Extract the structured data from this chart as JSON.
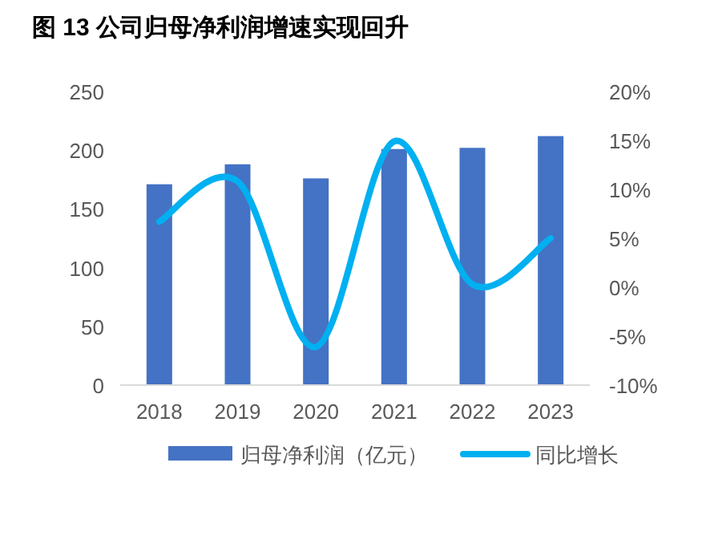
{
  "chart_data": {
    "type": "bar",
    "title": "图 13 公司归母净利润增速实现回升",
    "categories": [
      "2018",
      "2019",
      "2020",
      "2021",
      "2022",
      "2023"
    ],
    "series": [
      {
        "name": "归母净利润（亿元）",
        "color": "#4472c4",
        "values": [
          171,
          188,
          176,
          201,
          202,
          212
        ]
      },
      {
        "name": "同比增长",
        "type": "line",
        "axis": "y2",
        "color": "#00b0f0",
        "values": [
          6.7,
          10.8,
          -6.1,
          14.9,
          0.3,
          5.0
        ]
      }
    ],
    "ylim": [
      0,
      250
    ],
    "yticks": [
      0,
      50,
      100,
      150,
      200,
      250
    ],
    "y2lim": [
      -10,
      20
    ],
    "y2ticks": [
      {
        "value": -10,
        "label": "-10%"
      },
      {
        "value": -5,
        "label": "-5%"
      },
      {
        "value": 0,
        "label": "0%"
      },
      {
        "value": 5,
        "label": "5%"
      },
      {
        "value": 10,
        "label": "10%"
      },
      {
        "value": 15,
        "label": "15%"
      },
      {
        "value": 20,
        "label": "20%"
      }
    ],
    "legend": "bottom",
    "grid": false
  }
}
